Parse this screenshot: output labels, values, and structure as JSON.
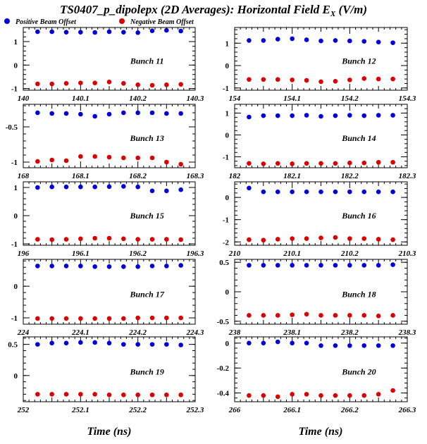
{
  "title": {
    "main": "TS0407_p_dipolepx (2D Averages): Horizontal Field E",
    "sub": "X",
    "unit": "(V/m)"
  },
  "legend": [
    {
      "label": "Positive Beam Offset",
      "color": "#0000dd"
    },
    {
      "label": "Negative Beam Offset",
      "color": "#dd0000"
    }
  ],
  "xlabel": "Time (ns)",
  "chart_data": [
    {
      "type": "scatter",
      "title": "Bunch 11",
      "x": [
        140.025,
        140.05,
        140.075,
        140.1,
        140.125,
        140.15,
        140.175,
        140.2,
        140.225,
        140.25,
        140.275
      ],
      "xlim": [
        140,
        140.3
      ],
      "xticks": [
        "140",
        "140.1",
        "140.2",
        "140.3"
      ],
      "xtickvals": [
        140,
        140.1,
        140.2,
        140.3
      ],
      "ylim": [
        -1.07,
        1.6
      ],
      "yticks": [
        "1",
        "0",
        "-1"
      ],
      "ytickvals": [
        1,
        0,
        -1
      ],
      "series": [
        {
          "name": "Positive Beam Offset",
          "values": [
            1.42,
            1.42,
            1.4,
            1.4,
            1.39,
            1.42,
            1.4,
            1.38,
            1.46,
            1.48,
            1.45
          ]
        },
        {
          "name": "Negative Beam Offset",
          "values": [
            -0.8,
            -0.8,
            -0.78,
            -0.76,
            -0.76,
            -0.72,
            -0.78,
            -0.84,
            -0.86,
            -0.84,
            -0.82
          ]
        }
      ]
    },
    {
      "type": "scatter",
      "title": "Bunch 12",
      "x": [
        154.025,
        154.05,
        154.075,
        154.1,
        154.125,
        154.15,
        154.175,
        154.2,
        154.225,
        154.25,
        154.275
      ],
      "xlim": [
        154,
        154.3
      ],
      "xticks": [
        "154",
        "154.1",
        "154.2",
        "154.3"
      ],
      "xtickvals": [
        154,
        154.1,
        154.2,
        154.3
      ],
      "ylim": [
        -1.1,
        1.7
      ],
      "yticks": [
        "1",
        "0",
        "-1"
      ],
      "ytickvals": [
        1,
        0,
        -1
      ],
      "series": [
        {
          "name": "Positive Beam Offset",
          "values": [
            1.12,
            1.12,
            1.18,
            1.2,
            1.15,
            1.1,
            1.12,
            1.1,
            1.08,
            1.05,
            1.02
          ]
        },
        {
          "name": "Negative Beam Offset",
          "values": [
            -0.62,
            -0.62,
            -0.62,
            -0.64,
            -0.66,
            -0.72,
            -0.7,
            -0.64,
            -0.58,
            -0.6,
            -0.6
          ]
        }
      ]
    },
    {
      "type": "scatter",
      "title": "Bunch 13",
      "x": [
        168.025,
        168.05,
        168.075,
        168.1,
        168.125,
        168.15,
        168.175,
        168.2,
        168.225,
        168.25,
        168.275
      ],
      "xlim": [
        168,
        168.3
      ],
      "xticks": [
        "168",
        "168.1",
        "168.2",
        "168.3"
      ],
      "xtickvals": [
        168,
        168.1,
        168.2,
        168.3
      ],
      "ylim": [
        -1.08,
        -0.18
      ],
      "yticks": [
        "-0.5",
        "-1"
      ],
      "ytickvals": [
        -0.5,
        -1
      ],
      "series": [
        {
          "name": "Positive Beam Offset",
          "values": [
            -0.3,
            -0.31,
            -0.31,
            -0.32,
            -0.35,
            -0.32,
            -0.3,
            -0.3,
            -0.3,
            -0.31,
            -0.31
          ]
        },
        {
          "name": "Negative Beam Offset",
          "values": [
            -0.99,
            -0.97,
            -0.98,
            -0.92,
            -0.92,
            -0.93,
            -0.94,
            -0.94,
            -0.94,
            -1.0,
            -1.03
          ]
        }
      ]
    },
    {
      "type": "scatter",
      "title": "Bunch 14",
      "x": [
        182.025,
        182.05,
        182.075,
        182.1,
        182.125,
        182.15,
        182.175,
        182.2,
        182.225,
        182.25,
        182.275
      ],
      "xlim": [
        182,
        182.3
      ],
      "xticks": [
        "182",
        "182.1",
        "182.2",
        "182.3"
      ],
      "xtickvals": [
        182,
        182.1,
        182.2,
        182.3
      ],
      "ylim": [
        -1.5,
        1.4
      ],
      "yticks": [
        "1",
        "0",
        "-1"
      ],
      "ytickvals": [
        1,
        0,
        -1
      ],
      "series": [
        {
          "name": "Positive Beam Offset",
          "values": [
            0.82,
            0.88,
            0.88,
            0.88,
            0.9,
            0.85,
            0.88,
            0.9,
            0.88,
            0.9,
            0.9
          ]
        },
        {
          "name": "Negative Beam Offset",
          "values": [
            -1.3,
            -1.32,
            -1.3,
            -1.32,
            -1.3,
            -1.3,
            -1.3,
            -1.28,
            -1.28,
            -1.25,
            -1.25
          ]
        }
      ]
    },
    {
      "type": "scatter",
      "title": "Bunch 15",
      "x": [
        196.025,
        196.05,
        196.075,
        196.1,
        196.125,
        196.15,
        196.175,
        196.2,
        196.225,
        196.25,
        196.275
      ],
      "xlim": [
        196,
        196.3
      ],
      "xticks": [
        "196",
        "196.1",
        "196.2",
        "196.3"
      ],
      "xtickvals": [
        196,
        196.1,
        196.2,
        196.3
      ],
      "ylim": [
        -1.05,
        1.2
      ],
      "yticks": [
        "1",
        "0",
        "-1"
      ],
      "ytickvals": [
        1,
        0,
        -1
      ],
      "series": [
        {
          "name": "Positive Beam Offset",
          "values": [
            1.0,
            1.02,
            1.02,
            1.02,
            1.02,
            1.03,
            1.04,
            1.02,
            0.88,
            0.88,
            0.92
          ]
        },
        {
          "name": "Negative Beam Offset",
          "values": [
            -0.84,
            -0.85,
            -0.84,
            -0.82,
            -0.8,
            -0.8,
            -0.82,
            -0.84,
            -0.84,
            -0.84,
            -0.85
          ]
        }
      ]
    },
    {
      "type": "scatter",
      "title": "Bunch 16",
      "x": [
        210.025,
        210.05,
        210.075,
        210.1,
        210.125,
        210.15,
        210.175,
        210.2,
        210.225,
        210.25,
        210.275
      ],
      "xlim": [
        210,
        210.3
      ],
      "xticks": [
        "210",
        "210.1",
        "210.2",
        "210.3"
      ],
      "xtickvals": [
        210,
        210.1,
        210.2,
        210.3
      ],
      "ylim": [
        -2.15,
        0.7
      ],
      "yticks": [
        "0",
        "-1",
        "-2"
      ],
      "ytickvals": [
        0,
        -1,
        -2
      ],
      "series": [
        {
          "name": "Positive Beam Offset",
          "values": [
            0.42,
            0.25,
            0.25,
            0.25,
            0.25,
            0.25,
            0.25,
            0.25,
            0.25,
            0.25,
            0.25
          ]
        },
        {
          "name": "Negative Beam Offset",
          "values": [
            -1.9,
            -1.92,
            -1.88,
            -1.85,
            -1.85,
            -1.82,
            -1.8,
            -1.85,
            -1.85,
            -1.88,
            -1.9
          ]
        }
      ]
    },
    {
      "type": "scatter",
      "title": "Bunch 17",
      "x": [
        224.025,
        224.05,
        224.075,
        224.1,
        224.125,
        224.15,
        224.175,
        224.2,
        224.225,
        224.25,
        224.275
      ],
      "xlim": [
        224,
        224.3
      ],
      "xticks": [
        "224",
        "224.1",
        "224.2",
        "224.3"
      ],
      "xtickvals": [
        224,
        224.1,
        224.2,
        224.3
      ],
      "ylim": [
        -1.2,
        0.85
      ],
      "yticks": [
        "0",
        "-1"
      ],
      "ytickvals": [
        0,
        -1
      ],
      "series": [
        {
          "name": "Positive Beam Offset",
          "values": [
            0.64,
            0.64,
            0.64,
            0.64,
            0.62,
            0.62,
            0.62,
            0.62,
            0.64,
            0.64,
            0.66
          ]
        },
        {
          "name": "Negative Beam Offset",
          "values": [
            -1.02,
            -1.02,
            -1.02,
            -1.02,
            -1.02,
            -1.02,
            -1.02,
            -1.0,
            -1.0,
            -1.0,
            -1.0
          ]
        }
      ]
    },
    {
      "type": "scatter",
      "title": "Bunch 18",
      "x": [
        238.025,
        238.05,
        238.075,
        238.1,
        238.125,
        238.15,
        238.175,
        238.2,
        238.225,
        238.25,
        238.275
      ],
      "xlim": [
        238,
        238.3
      ],
      "xticks": [
        "238",
        "238.1",
        "238.2",
        "238.3"
      ],
      "xtickvals": [
        238,
        238.1,
        238.2,
        238.3
      ],
      "ylim": [
        -0.55,
        0.55
      ],
      "yticks": [
        "0.5",
        "0",
        "-0.5"
      ],
      "ytickvals": [
        0.5,
        0,
        -0.5
      ],
      "series": [
        {
          "name": "Positive Beam Offset",
          "values": [
            0.45,
            0.45,
            0.45,
            0.45,
            0.45,
            0.45,
            0.45,
            0.45,
            0.45,
            0.45,
            0.46
          ]
        },
        {
          "name": "Negative Beam Offset",
          "values": [
            -0.4,
            -0.4,
            -0.4,
            -0.39,
            -0.38,
            -0.4,
            -0.4,
            -0.4,
            -0.4,
            -0.41,
            -0.4
          ]
        }
      ]
    },
    {
      "type": "scatter",
      "title": "Bunch 19",
      "x": [
        252.025,
        252.05,
        252.075,
        252.1,
        252.125,
        252.15,
        252.175,
        252.2,
        252.225,
        252.25,
        252.275
      ],
      "xlim": [
        252,
        252.3
      ],
      "xticks": [
        "252",
        "252.1",
        "252.2",
        "252.3"
      ],
      "xtickvals": [
        252,
        252.1,
        252.2,
        252.3
      ],
      "ylim": [
        -0.42,
        0.62
      ],
      "yticks": [
        "0.5",
        "0"
      ],
      "ytickvals": [
        0.5,
        0
      ],
      "series": [
        {
          "name": "Positive Beam Offset",
          "values": [
            0.5,
            0.52,
            0.52,
            0.53,
            0.53,
            0.52,
            0.5,
            0.5,
            0.5,
            0.5,
            0.49
          ]
        },
        {
          "name": "Negative Beam Offset",
          "values": [
            -0.3,
            -0.3,
            -0.3,
            -0.3,
            -0.3,
            -0.31,
            -0.31,
            -0.31,
            -0.31,
            -0.31,
            -0.31
          ]
        }
      ]
    },
    {
      "type": "scatter",
      "title": "Bunch 20",
      "x": [
        266.025,
        266.05,
        266.075,
        266.1,
        266.125,
        266.15,
        266.175,
        266.2,
        266.225,
        266.25,
        266.275
      ],
      "xlim": [
        266,
        266.3
      ],
      "xticks": [
        "266",
        "266.1",
        "266.2",
        "266.3"
      ],
      "xtickvals": [
        266,
        266.1,
        266.2,
        266.3
      ],
      "ylim": [
        -0.47,
        0.05
      ],
      "yticks": [
        "0",
        "-0.2",
        "-0.4"
      ],
      "ytickvals": [
        0,
        -0.2,
        -0.4
      ],
      "series": [
        {
          "name": "Positive Beam Offset",
          "values": [
            0.0,
            0.0,
            0.01,
            0.0,
            0.0,
            -0.02,
            -0.02,
            -0.02,
            -0.02,
            -0.02,
            -0.02
          ]
        },
        {
          "name": "Negative Beam Offset",
          "values": [
            -0.42,
            -0.42,
            -0.43,
            -0.41,
            -0.41,
            -0.42,
            -0.42,
            -0.42,
            -0.42,
            -0.41,
            -0.38
          ]
        }
      ]
    }
  ]
}
